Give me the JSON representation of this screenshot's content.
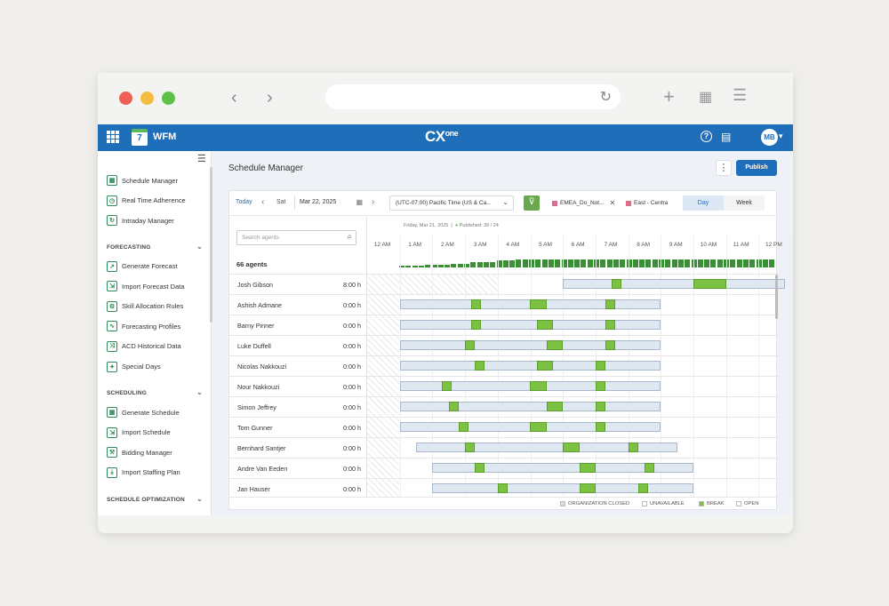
{
  "app": {
    "name": "WFM",
    "calendar_day": "7",
    "logo_main": "CX",
    "logo_sup": "one",
    "user_initials": "MB"
  },
  "sidebar": {
    "items_top": [
      {
        "label": "Schedule Manager",
        "icon": "calendar-icon"
      },
      {
        "label": "Real Time Adherence",
        "icon": "clock-icon"
      },
      {
        "label": "Intraday Manager",
        "icon": "refresh-icon"
      }
    ],
    "sections": [
      {
        "title": "FORECASTING",
        "items": [
          {
            "label": "Generate Forecast",
            "icon": "trend-icon"
          },
          {
            "label": "Import Forecast Data",
            "icon": "import-icon"
          },
          {
            "label": "Skill Allocation Rules",
            "icon": "skill-icon"
          },
          {
            "label": "Forecasting Profiles",
            "icon": "chart-icon"
          },
          {
            "label": "ACD Historical Data",
            "icon": "shuffle-icon"
          },
          {
            "label": "Special Days",
            "icon": "star-icon"
          }
        ]
      },
      {
        "title": "SCHEDULING",
        "items": [
          {
            "label": "Generate Schedule",
            "icon": "calendar-icon"
          },
          {
            "label": "Import Schedule",
            "icon": "import-icon"
          },
          {
            "label": "Bidding Manager",
            "icon": "gavel-icon"
          },
          {
            "label": "Import Staffing Plan",
            "icon": "download-icon"
          }
        ]
      },
      {
        "title": "SCHEDULE OPTIMIZATION",
        "items": []
      }
    ]
  },
  "main": {
    "title": "Schedule Manager",
    "publish_label": "Publish",
    "kebab": "⋮",
    "toolbar": {
      "today": "Today",
      "day_abbr": "Sat",
      "date": "Mar 22, 2025",
      "timezone": "(UTC-07:00) Pacific Time (US & Ca...",
      "chips": [
        "EMEA_Do_Not...",
        "East - Centra"
      ],
      "view_day": "Day",
      "view_week": "Week"
    },
    "search_placeholder": "Search agents",
    "agent_count": "66 agents",
    "timeline": {
      "date_label": "Friday, Mar 21, 2025",
      "published_label": "Published: 39 / 24",
      "hours": [
        "12 AM",
        "1 AM",
        "2 AM",
        "3 AM",
        "4 AM",
        "5 AM",
        "6 AM",
        "7 AM",
        "8 AM",
        "9 AM",
        "10 AM",
        "11 AM",
        "12 PM"
      ]
    },
    "agents": [
      {
        "name": "Josh Gibson",
        "hours": "8:00 h",
        "shift": [
          6.0,
          12.8
        ],
        "breaks": [
          [
            7.5,
            7.8
          ],
          [
            10.0,
            11.0
          ]
        ]
      },
      {
        "name": "Ashish Admane",
        "hours": "0:00 h",
        "shift": [
          1.0,
          9.0
        ],
        "breaks": [
          [
            3.2,
            3.5
          ],
          [
            5.0,
            5.5
          ],
          [
            7.3,
            7.6
          ]
        ]
      },
      {
        "name": "Barny Pinner",
        "hours": "0:00 h",
        "shift": [
          1.0,
          9.0
        ],
        "breaks": [
          [
            3.2,
            3.5
          ],
          [
            5.2,
            5.7
          ],
          [
            7.3,
            7.6
          ]
        ]
      },
      {
        "name": "Luke Duffell",
        "hours": "0:00 h",
        "shift": [
          1.0,
          9.0
        ],
        "breaks": [
          [
            3.0,
            3.3
          ],
          [
            5.5,
            6.0
          ],
          [
            7.3,
            7.6
          ]
        ]
      },
      {
        "name": "Nicolas Nakkouzi",
        "hours": "0:00 h",
        "shift": [
          1.0,
          9.0
        ],
        "breaks": [
          [
            3.3,
            3.6
          ],
          [
            5.2,
            5.7
          ],
          [
            7.0,
            7.3
          ]
        ]
      },
      {
        "name": "Nour Nakkouzi",
        "hours": "0:00 h",
        "shift": [
          1.0,
          9.0
        ],
        "breaks": [
          [
            2.3,
            2.6
          ],
          [
            5.0,
            5.5
          ],
          [
            7.0,
            7.3
          ]
        ]
      },
      {
        "name": "Simon Jeffrey",
        "hours": "0:00 h",
        "shift": [
          1.0,
          9.0
        ],
        "breaks": [
          [
            2.5,
            2.8
          ],
          [
            5.5,
            6.0
          ],
          [
            7.0,
            7.3
          ]
        ]
      },
      {
        "name": "Tom Gunner",
        "hours": "0:00 h",
        "shift": [
          1.0,
          9.0
        ],
        "breaks": [
          [
            2.8,
            3.1
          ],
          [
            5.0,
            5.5
          ],
          [
            7.0,
            7.3
          ]
        ]
      },
      {
        "name": "Bernhard Santjer",
        "hours": "0:00 h",
        "shift": [
          1.5,
          9.5
        ],
        "breaks": [
          [
            3.0,
            3.3
          ],
          [
            6.0,
            6.5
          ],
          [
            8.0,
            8.3
          ]
        ]
      },
      {
        "name": "Andre Van Eeden",
        "hours": "0:00 h",
        "shift": [
          2.0,
          10.0
        ],
        "breaks": [
          [
            3.3,
            3.6
          ],
          [
            6.5,
            7.0
          ],
          [
            8.5,
            8.8
          ]
        ]
      },
      {
        "name": "Jan Hauser",
        "hours": "0:00 h",
        "shift": [
          2.0,
          10.0
        ],
        "breaks": [
          [
            4.0,
            4.3
          ],
          [
            6.5,
            7.0
          ],
          [
            8.3,
            8.6
          ]
        ]
      }
    ],
    "coverage": [
      0.2,
      0.2,
      0.2,
      0.2,
      0.3,
      0.3,
      0.3,
      0.3,
      0.5,
      0.5,
      0.5,
      0.7,
      0.7,
      0.7,
      0.7,
      0.9,
      0.9,
      0.9,
      1,
      1,
      1,
      1,
      1,
      1,
      1,
      1,
      1,
      1,
      1,
      1,
      1,
      1,
      1,
      1,
      1,
      1,
      1,
      1,
      1,
      1,
      1,
      1,
      1,
      1,
      1,
      1,
      1,
      1,
      1,
      1,
      1,
      1,
      1,
      1,
      1,
      1,
      1,
      1
    ],
    "legend": [
      {
        "label": "ORGANIZATION CLOSED",
        "color": "#dcdcdc"
      },
      {
        "label": "UNAVAILABLE",
        "color": "#ffffff"
      },
      {
        "label": "BREAK",
        "color": "#7cc142"
      },
      {
        "label": "OPEN",
        "color": "#ffffff"
      }
    ]
  }
}
